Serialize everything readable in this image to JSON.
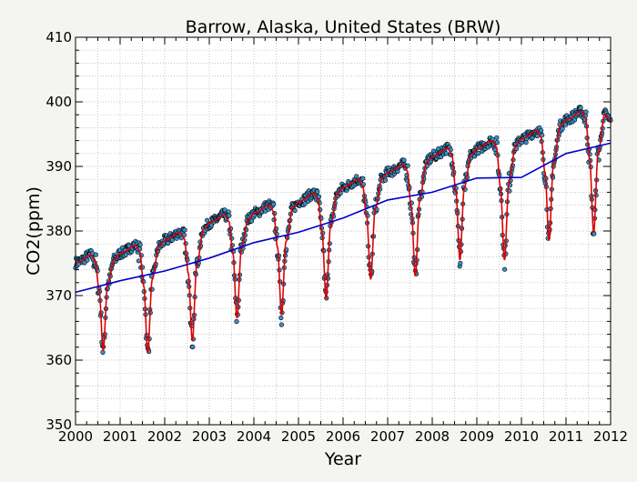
{
  "chart_data": {
    "type": "scatter",
    "title": "Barrow, Alaska, United States (BRW)",
    "xlabel": "Year",
    "ylabel": "CO2(ppm)",
    "xlim": [
      2000,
      2012
    ],
    "ylim": [
      350,
      410
    ],
    "x_ticks": [
      2000,
      2001,
      2002,
      2003,
      2004,
      2005,
      2006,
      2007,
      2008,
      2009,
      2010,
      2011,
      2012
    ],
    "y_ticks": [
      350,
      360,
      370,
      380,
      390,
      400,
      410
    ],
    "x_tick_labels": [
      "2000",
      "2001",
      "2002",
      "2003",
      "2004",
      "2005",
      "2006",
      "2007",
      "2008",
      "2009",
      "2010",
      "2011",
      "2012"
    ],
    "y_tick_labels": [
      "350",
      "360",
      "370",
      "380",
      "390",
      "400",
      "410"
    ],
    "grid": true,
    "legend": "none",
    "colors": {
      "points": "#3a8fc8",
      "points_edge": "#000000",
      "seasonal": "#e00000",
      "trend": "#0000c8"
    },
    "series": [
      {
        "kind": "points",
        "seasonal_fit_by_year": [
          {
            "year": 2000,
            "spring_max": 376.3,
            "summer_min": 361.5
          },
          {
            "year": 2001,
            "spring_max": 377.8,
            "summer_min": 361.2
          },
          {
            "year": 2002,
            "spring_max": 379.8,
            "summer_min": 363.0
          },
          {
            "year": 2003,
            "spring_max": 382.5,
            "summer_min": 366.5
          },
          {
            "year": 2004,
            "spring_max": 384.0,
            "summer_min": 367.0
          },
          {
            "year": 2005,
            "spring_max": 385.8,
            "summer_min": 369.5
          },
          {
            "year": 2006,
            "spring_max": 388.0,
            "summer_min": 372.5
          },
          {
            "year": 2007,
            "spring_max": 390.3,
            "summer_min": 373.0
          },
          {
            "year": 2008,
            "spring_max": 392.8,
            "summer_min": 375.5
          },
          {
            "year": 2009,
            "spring_max": 394.0,
            "summer_min": 375.5
          },
          {
            "year": 2010,
            "spring_max": 395.5,
            "summer_min": 378.5
          },
          {
            "year": 2011,
            "spring_max": 398.5,
            "summer_min": 379.8
          }
        ]
      },
      {
        "kind": "trend_line",
        "x": [
          2000,
          2001,
          2002,
          2003,
          2004,
          2005,
          2006,
          2007,
          2008,
          2009,
          2010,
          2011,
          2012
        ],
        "y": [
          370.5,
          372.3,
          373.8,
          375.8,
          378.2,
          379.8,
          382.0,
          384.8,
          386.0,
          388.2,
          388.3,
          392.0,
          393.6
        ]
      }
    ]
  }
}
